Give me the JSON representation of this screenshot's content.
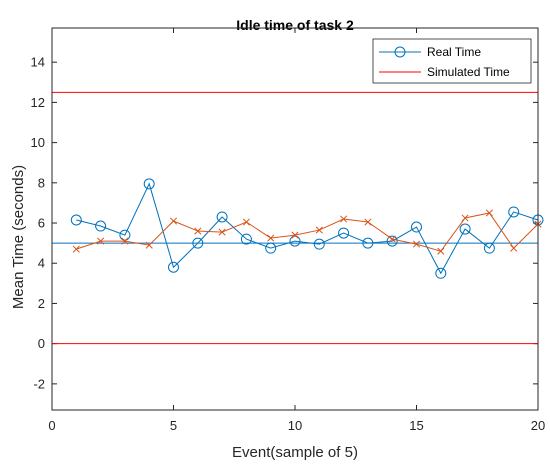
{
  "chart_data": {
    "type": "line",
    "title": "Idle time of task 2",
    "xlabel": "Event(sample of 5)",
    "ylabel": "Mean Time (seconds)",
    "xlim": [
      0,
      20
    ],
    "ylim": [
      -3.3,
      15.7
    ],
    "xticks": [
      0,
      5,
      10,
      15,
      20
    ],
    "yticks": [
      -2,
      0,
      2,
      4,
      6,
      8,
      10,
      12,
      14
    ],
    "grid": false,
    "legend_position": "top-right",
    "x": [
      1,
      2,
      3,
      4,
      5,
      6,
      7,
      8,
      9,
      10,
      11,
      12,
      13,
      14,
      15,
      16,
      17,
      18,
      19,
      20
    ],
    "series": [
      {
        "name": "Real Time",
        "color": "#0072BD",
        "marker": "circle",
        "values": [
          6.15,
          5.85,
          5.4,
          7.95,
          3.8,
          5.0,
          6.3,
          5.2,
          4.75,
          5.1,
          4.95,
          5.5,
          5.0,
          5.1,
          5.8,
          3.5,
          5.7,
          4.75,
          6.55,
          6.15
        ]
      },
      {
        "name": "Simulated Time",
        "color": "#D95319",
        "marker": "x",
        "values": [
          4.7,
          5.1,
          5.1,
          4.9,
          6.1,
          5.6,
          5.55,
          6.05,
          5.25,
          5.4,
          5.65,
          6.2,
          6.05,
          5.2,
          4.95,
          4.6,
          6.25,
          6.5,
          4.75,
          5.95
        ]
      }
    ],
    "reference_lines": [
      {
        "orientation": "horizontal",
        "y": 12.5,
        "color": "#FF0000"
      },
      {
        "orientation": "horizontal",
        "y": 0,
        "color": "#FF0000"
      },
      {
        "orientation": "horizontal",
        "y": 5.0,
        "color": "#0072BD"
      }
    ]
  }
}
